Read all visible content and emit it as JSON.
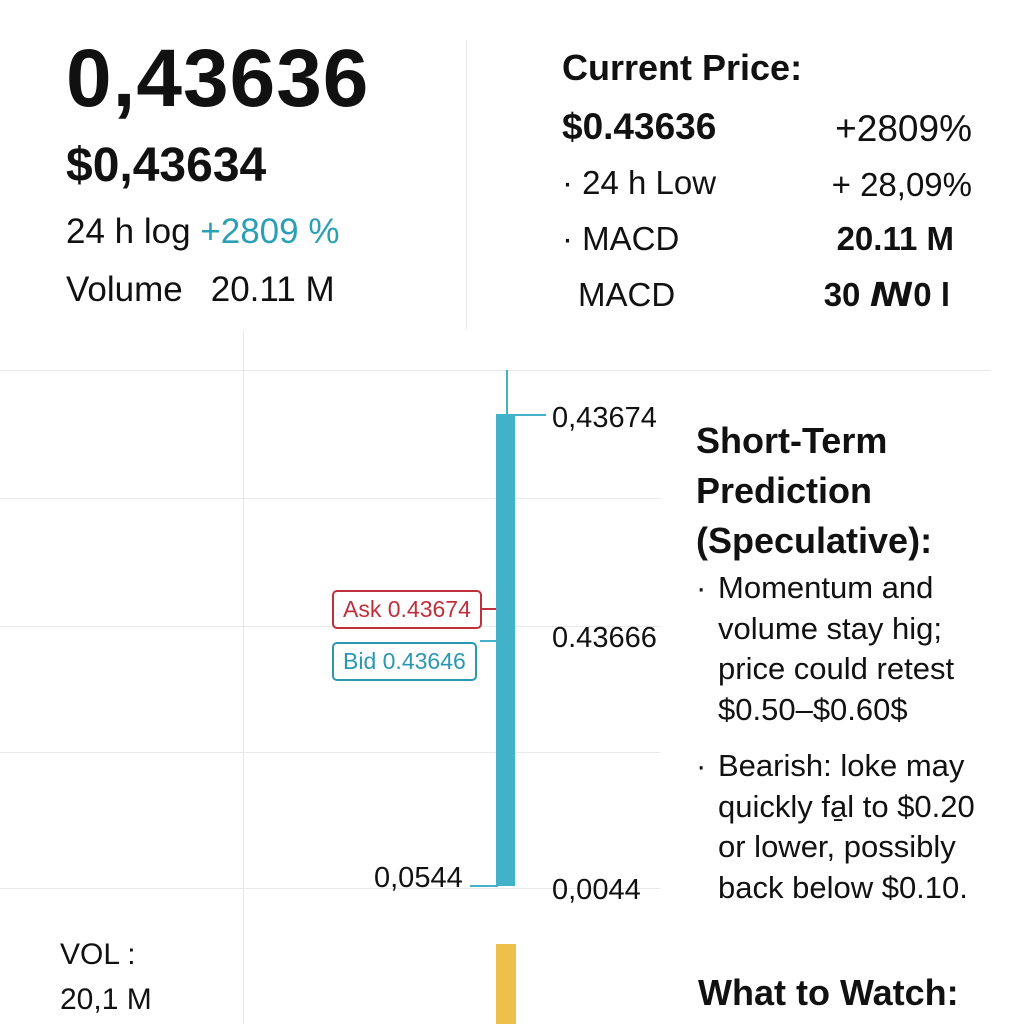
{
  "ticker_panel": {
    "big_price": "0,43636",
    "sub_price": "$0,43634",
    "log_label": "24 h log",
    "log_value": "+2809 %",
    "volume_label": "Volume",
    "volume_value": "20.11 M"
  },
  "stats_panel": {
    "title": "Current Price:",
    "rows": [
      {
        "left": "$0.43636",
        "right": "+2809%"
      },
      {
        "left": "· 24 h Low",
        "right": "+ 28,09%"
      },
      {
        "left": "· MACD",
        "right": "20.11 M"
      },
      {
        "left": "MACD",
        "right": "30 ꟿ0 l"
      }
    ]
  },
  "chart": {
    "labels": {
      "high": "0,43674",
      "mid": "0.43666",
      "low": "0,0044",
      "open": "0,0544"
    },
    "ask_label": "Ask 0.43674",
    "bid_label": "Bid 0.43646",
    "vol_label": "VOL :",
    "vol_value": "20,1 M",
    "colors": {
      "candle": "#41b2c8",
      "volume": "#ecc04a",
      "ask": "#c0303c",
      "bid": "#2a98b3"
    }
  },
  "prediction": {
    "title": "Short-Term Prediction (Speculative):",
    "bullets": [
      "Momentum and volume stay hig; price could retest $0.50–$0.60$",
      "Bearish: loke may quickly fa̱l to $0.20 or lower, possibly back below $0.10."
    ],
    "watch_title": "What to Watch:"
  }
}
